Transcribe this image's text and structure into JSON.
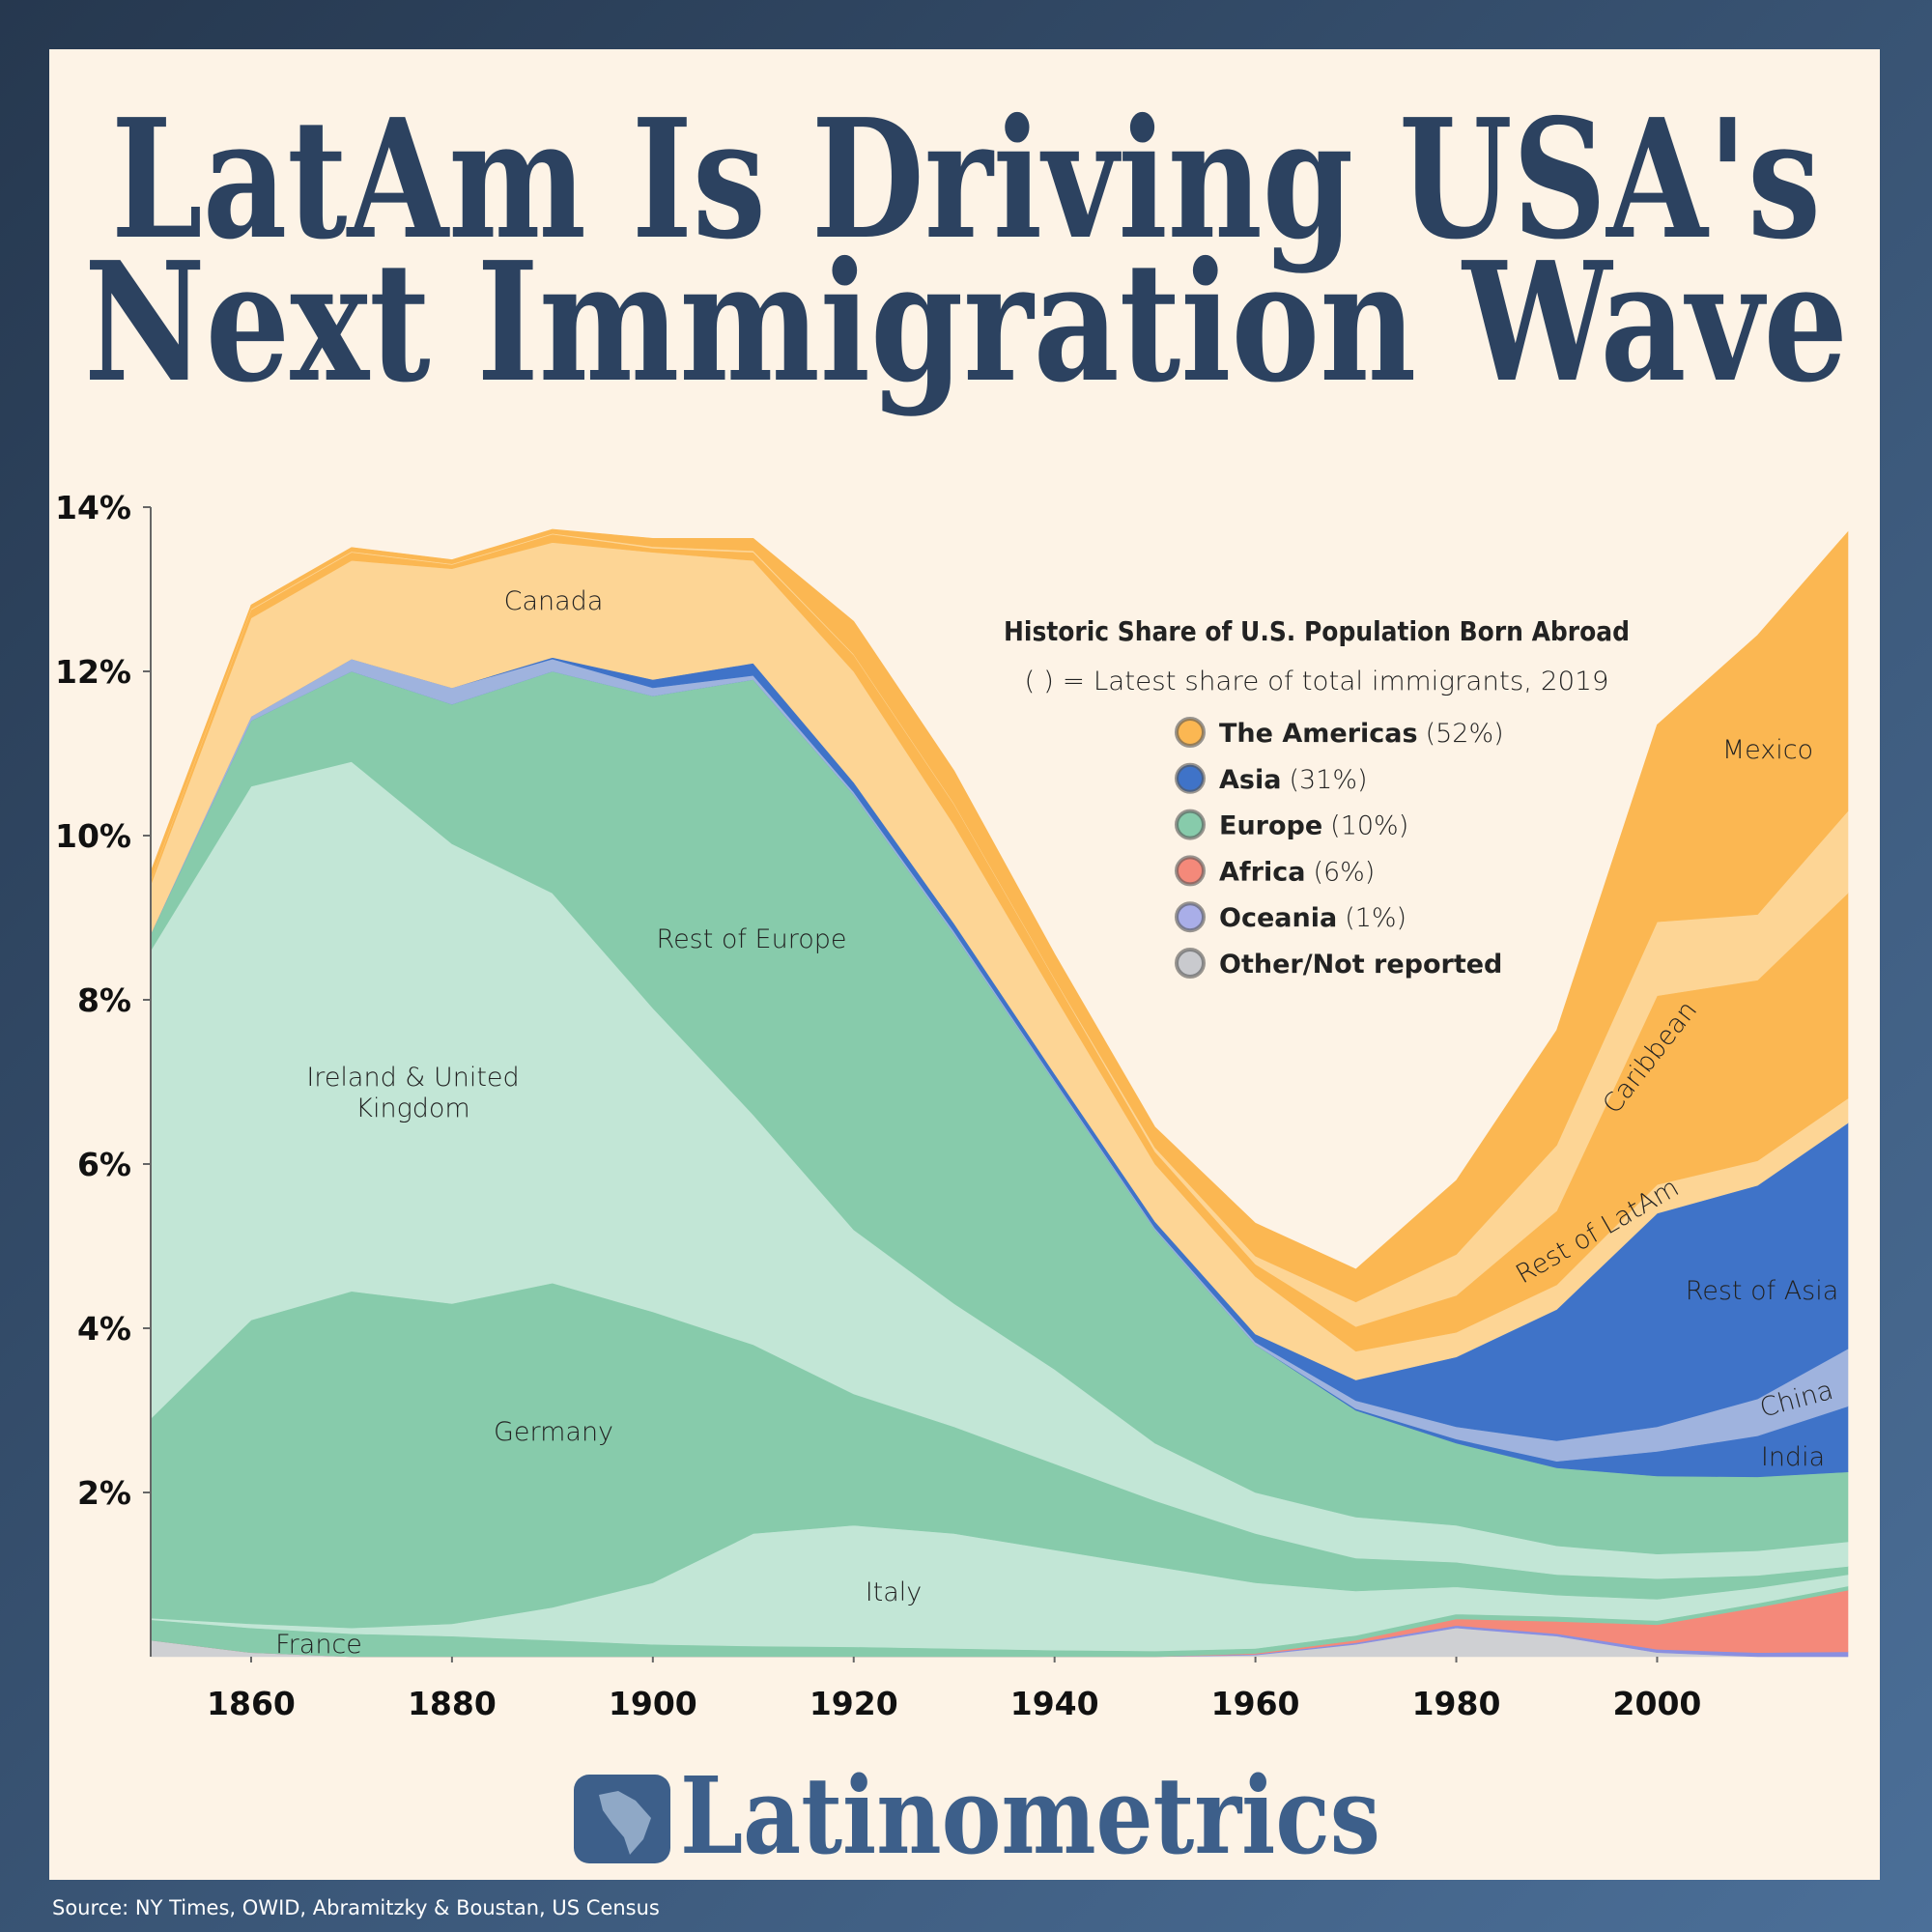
{
  "title_lines": [
    "LatAm Is Driving USA's",
    "Next Immigration Wave"
  ],
  "brand": "Latinometrics",
  "source": "Source: NY Times, OWID, Abramitzky & Boustan, US Census",
  "chart_data": {
    "type": "stacked-area",
    "x": [
      1850,
      1860,
      1870,
      1880,
      1890,
      1900,
      1910,
      1920,
      1930,
      1940,
      1950,
      1960,
      1970,
      1980,
      1990,
      2000,
      2010,
      2019
    ],
    "xlim": [
      1850,
      2019
    ],
    "xticks": [
      1860,
      1880,
      1900,
      1920,
      1940,
      1960,
      1980,
      2000
    ],
    "ylim": [
      0,
      14
    ],
    "yticks": [
      {
        "value": 2,
        "label": "2%"
      },
      {
        "value": 4,
        "label": "4%"
      },
      {
        "value": 6,
        "label": "6%"
      },
      {
        "value": 8,
        "label": "8%"
      },
      {
        "value": 10,
        "label": "10%"
      },
      {
        "value": 12,
        "label": "12%"
      },
      {
        "value": 14,
        "label": "14%"
      }
    ],
    "series": [
      {
        "color": "#cfd0d3",
        "values": [
          0.2,
          0.05,
          0,
          0,
          0,
          0,
          0,
          0,
          0,
          0,
          0,
          0.02,
          0.15,
          0.35,
          0.25,
          0.05,
          0,
          0
        ]
      },
      {
        "color": "#8a8fe0",
        "values": [
          0,
          0,
          0,
          0,
          0,
          0,
          0,
          0,
          0,
          0,
          0,
          0.01,
          0.02,
          0.03,
          0.03,
          0.04,
          0.05,
          0.06
        ]
      },
      {
        "color": "#f4897a",
        "values": [
          0,
          0,
          0,
          0,
          0,
          0,
          0,
          0,
          0,
          0,
          0,
          0.01,
          0.03,
          0.08,
          0.15,
          0.3,
          0.55,
          0.75
        ]
      },
      {
        "name": "France",
        "color": "#87cbab",
        "values": [
          0.25,
          0.3,
          0.28,
          0.25,
          0.2,
          0.15,
          0.13,
          0.12,
          0.1,
          0.08,
          0.07,
          0.06,
          0.06,
          0.06,
          0.06,
          0.05,
          0.05,
          0.05
        ]
      },
      {
        "name": "Italy",
        "color": "#c2e6d6",
        "values": [
          0.02,
          0.05,
          0.07,
          0.15,
          0.4,
          0.75,
          1.37,
          1.48,
          1.4,
          1.22,
          1.03,
          0.8,
          0.54,
          0.33,
          0.26,
          0.26,
          0.19,
          0.14
        ]
      },
      {
        "name": "Germany",
        "color": "#87cbab",
        "values": [
          2.43,
          3.7,
          4.1,
          3.9,
          3.95,
          3.3,
          2.3,
          1.6,
          1.3,
          1.05,
          0.8,
          0.6,
          0.4,
          0.3,
          0.25,
          0.25,
          0.15,
          0.1
        ]
      },
      {
        "name": "Ireland & United Kingdom",
        "color": "#c2e6d6",
        "values": [
          5.7,
          6.5,
          6.45,
          5.6,
          4.75,
          3.7,
          2.8,
          2.0,
          1.5,
          1.15,
          0.7,
          0.5,
          0.5,
          0.45,
          0.35,
          0.3,
          0.3,
          0.3
        ]
      },
      {
        "name": "Rest of Europe",
        "color": "#87cbab",
        "values": [
          0.2,
          0.8,
          1.1,
          1.7,
          2.7,
          3.8,
          5.3,
          5.3,
          4.5,
          3.5,
          2.6,
          1.8,
          1.3,
          1.0,
          0.95,
          0.95,
          0.9,
          0.85
        ]
      },
      {
        "name": "India",
        "color": "#3f73c8",
        "values": [
          0,
          0,
          0,
          0,
          0,
          0,
          0,
          0,
          0,
          0,
          0,
          0,
          0.02,
          0.05,
          0.08,
          0.3,
          0.5,
          0.8
        ]
      },
      {
        "name": "China",
        "color": "#9fb3de",
        "values": [
          0,
          0.05,
          0.15,
          0.2,
          0.15,
          0.1,
          0.05,
          0.03,
          0.03,
          0.02,
          0.02,
          0.03,
          0.1,
          0.15,
          0.25,
          0.3,
          0.45,
          0.7
        ]
      },
      {
        "name": "Rest of Asia",
        "color": "#3f73c8",
        "values": [
          0,
          0,
          0,
          0,
          0.02,
          0.1,
          0.15,
          0.12,
          0.1,
          0.08,
          0.08,
          0.1,
          0.25,
          0.85,
          1.6,
          2.6,
          2.6,
          2.75
        ]
      },
      {
        "name": "Canada",
        "color": "#fdd595",
        "values": [
          0.6,
          1.2,
          1.2,
          1.45,
          1.4,
          1.55,
          1.25,
          1.35,
          1.2,
          0.95,
          0.7,
          0.7,
          0.35,
          0.3,
          0.3,
          0.35,
          0.3,
          0.3
        ]
      },
      {
        "name": "Rest of LatAm",
        "color": "#fbb752",
        "values": [
          0.05,
          0.1,
          0.1,
          0.05,
          0.1,
          0.05,
          0.1,
          0.2,
          0.25,
          0.2,
          0.15,
          0.15,
          0.3,
          0.45,
          0.9,
          2.3,
          2.2,
          2.5
        ]
      },
      {
        "name": "Caribbean",
        "color": "#fdd595",
        "values": [
          0.01,
          0.01,
          0.01,
          0.01,
          0.01,
          0.02,
          0.02,
          0.01,
          0.01,
          0.01,
          0.05,
          0.1,
          0.3,
          0.5,
          0.8,
          0.9,
          0.8,
          1.0
        ]
      },
      {
        "name": "Mexico",
        "color": "#fbb752",
        "values": [
          0.1,
          0.05,
          0.05,
          0.05,
          0.05,
          0.1,
          0.15,
          0.4,
          0.4,
          0.3,
          0.25,
          0.4,
          0.4,
          0.9,
          1.4,
          2.4,
          3.4,
          3.4
        ]
      }
    ],
    "legend": {
      "title": "Historic Share of U.S. Population Born Abroad",
      "subtitle": "( ) = Latest share of total immigrants, 2019",
      "items": [
        {
          "name": "The Americas",
          "share": "(52%)",
          "color": "#fbb752"
        },
        {
          "name": "Asia",
          "share": "(31%)",
          "color": "#3f73c8"
        },
        {
          "name": "Europe",
          "share": "(10%)",
          "color": "#87cbab"
        },
        {
          "name": "Africa",
          "share": "(6%)",
          "color": "#f4897a"
        },
        {
          "name": "Oceania",
          "share": "(1%)",
          "color": "#a9aee8"
        },
        {
          "name": "Other/Not reported",
          "color": "#c9cace"
        }
      ]
    }
  }
}
